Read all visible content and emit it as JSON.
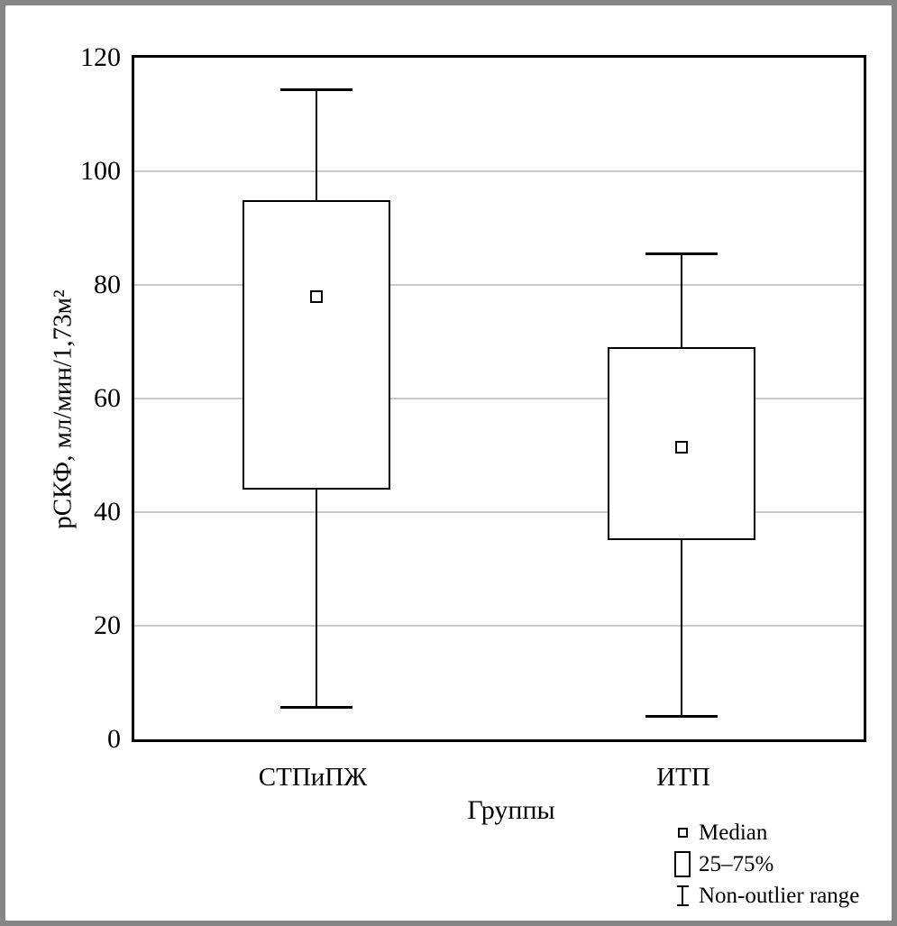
{
  "figure": {
    "background": "#ffffff",
    "frame_border_color": "#868686"
  },
  "chart_data": {
    "type": "boxplot",
    "title": "",
    "xlabel": "Группы",
    "ylabel": "рСКФ, мл/мин/1,73м²",
    "categories": [
      "СТПиПЖ",
      "ИТП"
    ],
    "ylim": [
      0,
      120
    ],
    "yticks": [
      0,
      20,
      40,
      60,
      80,
      100,
      120
    ],
    "grid": "horizontal",
    "series": [
      {
        "name": "СТПиПЖ",
        "median": 78,
        "q1": 44,
        "q3": 95,
        "whisker_low": 5.5,
        "whisker_high": 114.5
      },
      {
        "name": "ИТП",
        "median": 51.5,
        "q1": 35,
        "q3": 69,
        "whisker_low": 4,
        "whisker_high": 85.5
      }
    ],
    "legend": {
      "position": "bottom-right",
      "items": [
        {
          "symbol": "median-point",
          "label": "Median"
        },
        {
          "symbol": "box-25-75",
          "label": "25–75%"
        },
        {
          "symbol": "whisker-range",
          "label": "Non-outlier range"
        }
      ]
    },
    "colors": {
      "line": "#000000",
      "grid": "#c9c9c9",
      "fill": "#ffffff"
    }
  }
}
